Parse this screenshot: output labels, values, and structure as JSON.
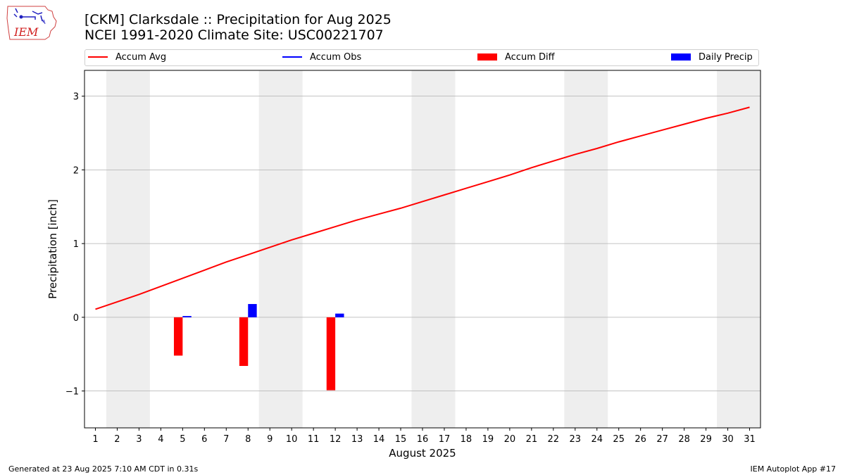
{
  "header": {
    "title_line1": "[CKM] Clarksdale :: Precipitation for Aug 2025",
    "title_line2": "NCEI 1991-2020 Climate Site: USC00221707"
  },
  "logo": {
    "text": "IEM"
  },
  "legend": {
    "accum_avg": "Accum Avg",
    "accum_obs": "Accum Obs",
    "accum_diff": "Accum Diff",
    "daily_precip": "Daily Precip"
  },
  "footer": {
    "generated": "Generated at 23 Aug 2025 7:10 AM CDT in 0.31s",
    "app": "IEM Autoplot App #17"
  },
  "colors": {
    "avg": "#ff0000",
    "obs": "#0000ff",
    "diff": "#ff0000",
    "daily": "#0000ff",
    "weekend": "#eeeeee",
    "grid": "#b0b0b0"
  },
  "chart_data": {
    "type": "bar",
    "xlabel": "August 2025",
    "ylabel": "Precipitation [inch]",
    "xlim": [
      0.5,
      31.5
    ],
    "ylim": [
      -1.5,
      3.35
    ],
    "yticks": [
      -1,
      0,
      1,
      2,
      3
    ],
    "ytick_labels": [
      "−1",
      "0",
      "1",
      "2",
      "3"
    ],
    "days": [
      1,
      2,
      3,
      4,
      5,
      6,
      7,
      8,
      9,
      10,
      11,
      12,
      13,
      14,
      15,
      16,
      17,
      18,
      19,
      20,
      21,
      22,
      23,
      24,
      25,
      26,
      27,
      28,
      29,
      30,
      31
    ],
    "weekend_spans": [
      [
        1.5,
        3.5
      ],
      [
        8.5,
        10.5
      ],
      [
        15.5,
        17.5
      ],
      [
        22.5,
        24.5
      ],
      [
        29.5,
        31.5
      ]
    ],
    "accum_avg": [
      0.11,
      0.21,
      0.31,
      0.42,
      0.53,
      0.64,
      0.75,
      0.85,
      0.95,
      1.05,
      1.14,
      1.23,
      1.32,
      1.4,
      1.48,
      1.57,
      1.66,
      1.75,
      1.84,
      1.93,
      2.03,
      2.12,
      2.21,
      2.29,
      2.38,
      2.46,
      2.54,
      2.62,
      2.7,
      2.77,
      2.85
    ],
    "accum_diff": [
      {
        "day": 5,
        "value": -0.52
      },
      {
        "day": 8,
        "value": -0.66
      },
      {
        "day": 12,
        "value": -0.99
      }
    ],
    "daily_precip": [
      {
        "day": 5,
        "value": 0.01
      },
      {
        "day": 8,
        "value": 0.18
      },
      {
        "day": 12,
        "value": 0.05
      }
    ],
    "grid": true,
    "legend_position": "top"
  }
}
